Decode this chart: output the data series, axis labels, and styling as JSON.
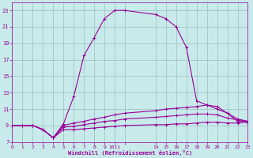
{
  "xlabel": "Windchill (Refroidissement éolien,°C)",
  "bg_color": "#c8eaea",
  "line_color": "#990099",
  "grid_color": "#9bbfbf",
  "series": [
    {
      "x": [
        0,
        1,
        2,
        3,
        4,
        5,
        6,
        7,
        8,
        9,
        10,
        11,
        14,
        15,
        16,
        17,
        18,
        19,
        20,
        21,
        22,
        23
      ],
      "y": [
        9.0,
        9.0,
        9.0,
        8.5,
        7.5,
        9.2,
        12.5,
        17.5,
        19.7,
        22.0,
        23.0,
        23.0,
        22.5,
        22.0,
        21.0,
        18.5,
        12.0,
        11.5,
        11.0,
        10.5,
        9.5,
        9.5
      ]
    },
    {
      "x": [
        0,
        1,
        2,
        3,
        4,
        5,
        6,
        7,
        8,
        9,
        10,
        11,
        14,
        15,
        16,
        17,
        18,
        19,
        20,
        21,
        22,
        23
      ],
      "y": [
        9.0,
        9.0,
        9.0,
        8.5,
        7.5,
        9.0,
        9.3,
        9.5,
        9.8,
        10.0,
        10.3,
        10.5,
        10.8,
        11.0,
        11.1,
        11.2,
        11.3,
        11.5,
        11.3,
        10.5,
        9.8,
        9.5
      ]
    },
    {
      "x": [
        0,
        1,
        2,
        3,
        4,
        5,
        6,
        7,
        8,
        9,
        10,
        11,
        14,
        15,
        16,
        17,
        18,
        19,
        20,
        21,
        22,
        23
      ],
      "y": [
        9.0,
        9.0,
        9.0,
        8.5,
        7.5,
        8.8,
        8.9,
        9.1,
        9.3,
        9.5,
        9.6,
        9.8,
        10.0,
        10.1,
        10.2,
        10.3,
        10.4,
        10.4,
        10.3,
        9.9,
        9.7,
        9.5
      ]
    },
    {
      "x": [
        0,
        1,
        2,
        3,
        4,
        5,
        6,
        7,
        8,
        9,
        10,
        11,
        14,
        15,
        16,
        17,
        18,
        19,
        20,
        21,
        22,
        23
      ],
      "y": [
        9.0,
        9.0,
        9.0,
        8.5,
        7.5,
        8.5,
        8.5,
        8.6,
        8.7,
        8.8,
        8.9,
        9.0,
        9.1,
        9.1,
        9.2,
        9.2,
        9.3,
        9.4,
        9.4,
        9.3,
        9.3,
        9.4
      ]
    }
  ],
  "xlim": [
    0,
    23
  ],
  "ylim": [
    7,
    24
  ],
  "yticks": [
    7,
    9,
    11,
    13,
    15,
    17,
    19,
    21,
    23
  ],
  "xticks": [
    0,
    1,
    2,
    3,
    4,
    5,
    6,
    7,
    8,
    9,
    10,
    11,
    14,
    15,
    16,
    17,
    18,
    19,
    20,
    21,
    22,
    23
  ],
  "xticklabels": [
    "0",
    "1",
    "2",
    "3",
    "4",
    "5",
    "6",
    "7",
    "8",
    "9",
    "1011",
    "",
    "14",
    "15",
    "16",
    "17",
    "18",
    "19",
    "20",
    "21",
    "22",
    "23"
  ]
}
